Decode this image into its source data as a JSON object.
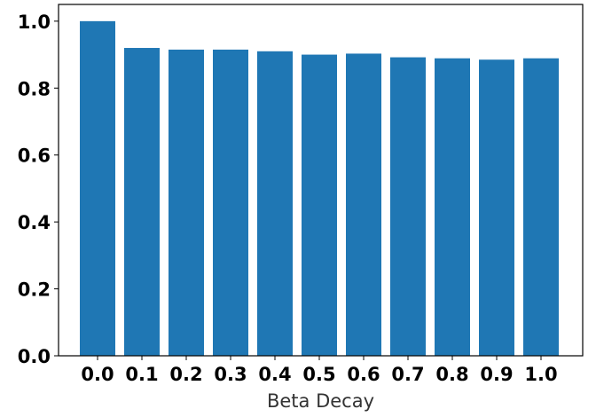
{
  "chart_data": {
    "type": "bar",
    "categories": [
      "0.0",
      "0.1",
      "0.2",
      "0.3",
      "0.4",
      "0.5",
      "0.6",
      "0.7",
      "0.8",
      "0.9",
      "1.0"
    ],
    "values": [
      1.0,
      0.92,
      0.915,
      0.915,
      0.91,
      0.9,
      0.903,
      0.892,
      0.889,
      0.885,
      0.889
    ],
    "title": "",
    "xlabel": "Beta Decay",
    "ylabel": "",
    "ylim": [
      0,
      1.05
    ],
    "yticks": [
      "0.0",
      "0.2",
      "0.4",
      "0.6",
      "0.8",
      "1.0"
    ],
    "grid": false,
    "bar_color": "#1f77b4"
  }
}
